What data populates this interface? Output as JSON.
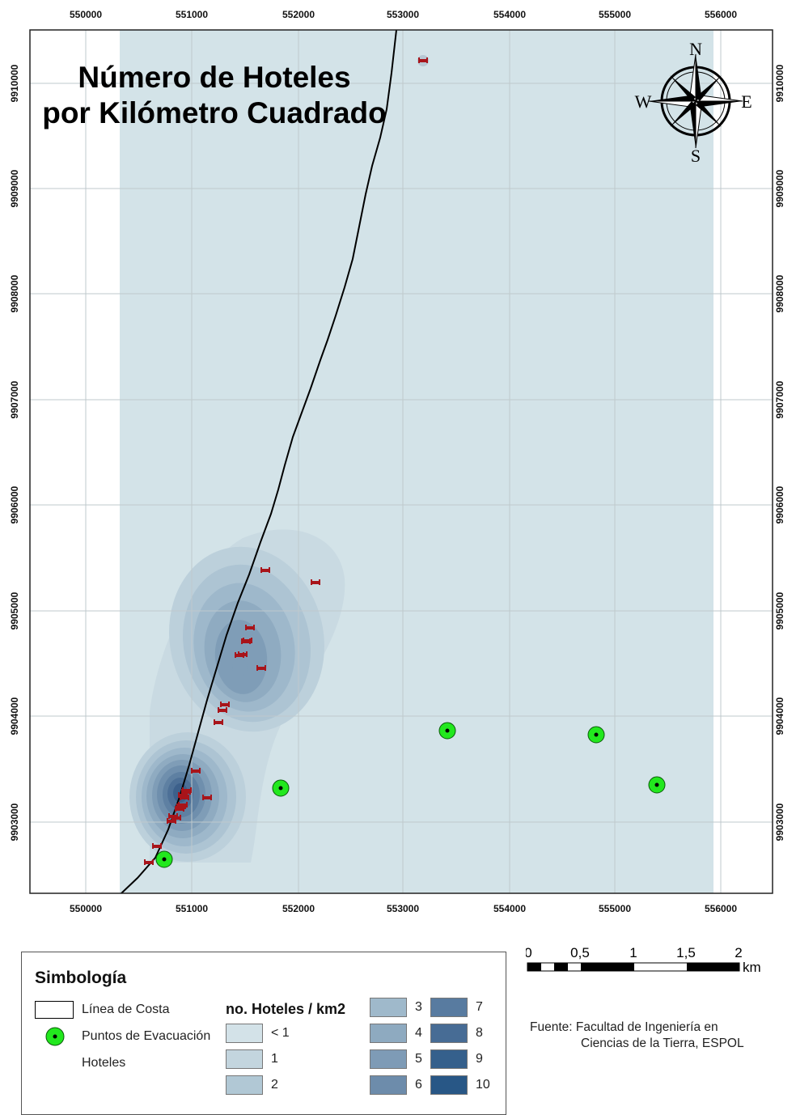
{
  "map": {
    "title_line1": "Número de Hoteles",
    "title_line2": "por Kilómetro Cuadrado",
    "x_ticks": [
      "550000",
      "551000",
      "552000",
      "553000",
      "554000",
      "555000",
      "556000"
    ],
    "y_ticks": [
      "9910000",
      "9909000",
      "9908000",
      "9907000",
      "9906000",
      "9905000",
      "9904000",
      "9903000"
    ],
    "colors": {
      "background": "#d3e3e8",
      "density_scale": [
        "#c9dae2",
        "#bcd0db",
        "#adc4d3",
        "#9eb8cb",
        "#8fabc1",
        "#7f9db7",
        "#6f8fad",
        "#5e80a2",
        "#4d7097",
        "#3c608b"
      ],
      "coast_line": "#000000",
      "evacuation_point": "#22e81e",
      "hotel_icon": "#a8141a"
    },
    "compass": {
      "n": "N",
      "s": "S",
      "e": "E",
      "w": "W"
    },
    "hotels_count": 26,
    "evacuation_points_count": 6
  },
  "legend": {
    "title": "Simbología",
    "coast_label": "Línea de Costa",
    "evac_label": "Puntos de Evacuación",
    "hotels_label": "Hoteles",
    "density_title": "no. Hoteles / km2",
    "classes": [
      "< 1",
      "1",
      "2",
      "3",
      "4",
      "5",
      "6",
      "7",
      "8",
      "9",
      "10"
    ]
  },
  "scale": {
    "labels": [
      "0",
      "0,5",
      "1",
      "1,5",
      "2"
    ],
    "unit": "km"
  },
  "source": {
    "line1": "Fuente: Facultad de Ingeniería en",
    "line2": "Ciencias de la Tierra, ESPOL"
  }
}
